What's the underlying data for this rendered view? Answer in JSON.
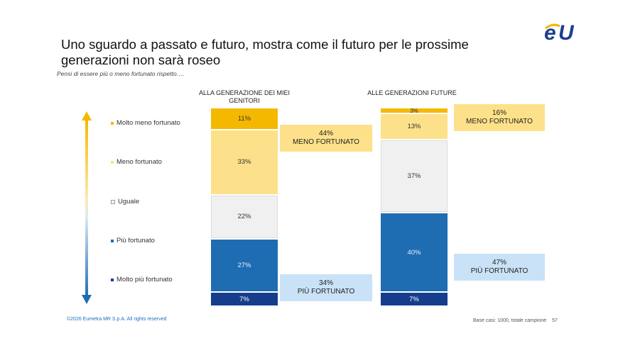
{
  "title": "Uno sguardo a passato e futuro, mostra come il futuro per le prossime generazioni non sarà roseo",
  "subtitle": "Pensi di essere più o meno fortunato rispetto….",
  "logo_text": "eU",
  "legend": [
    {
      "label": "Molto meno fortunato",
      "color": "#f5b800"
    },
    {
      "label": "Meno fortunato",
      "color": "#fde18a"
    },
    {
      "label": "Uguale",
      "color": "#f0f0f0"
    },
    {
      "label": "Più fortunato",
      "color": "#1e6db3"
    },
    {
      "label": "Molto più fortunato",
      "color": "#163d8c"
    }
  ],
  "chart_data": {
    "type": "bar",
    "stacked": true,
    "categories": [
      "ALLA GENERAZIONE DEI MIEI GENITORI",
      "ALLE GENERAZIONI FUTURE"
    ],
    "series": [
      {
        "name": "Molto meno fortunato",
        "values": [
          11,
          3
        ],
        "labels": [
          "11%",
          "3%"
        ]
      },
      {
        "name": "Meno fortunato",
        "values": [
          33,
          13
        ],
        "labels": [
          "33%",
          "13%"
        ]
      },
      {
        "name": "Uguale",
        "values": [
          22,
          37
        ],
        "labels": [
          "22%",
          "37%"
        ]
      },
      {
        "name": "Più fortunato",
        "values": [
          27,
          40
        ],
        "labels": [
          "27%",
          "40%"
        ]
      },
      {
        "name": "Molto più fortunato",
        "values": [
          7,
          7
        ],
        "labels": [
          "7%",
          "7%"
        ]
      }
    ],
    "callouts": [
      {
        "bar": 0,
        "group": "meno",
        "pct": "44%",
        "text": "MENO FORTUNATO"
      },
      {
        "bar": 0,
        "group": "piu",
        "pct": "34%",
        "text": "PIÙ FORTUNATO"
      },
      {
        "bar": 1,
        "group": "meno",
        "pct": "16%",
        "text": "MENO FORTUNATO"
      },
      {
        "bar": 1,
        "group": "piu",
        "pct": "47%",
        "text": "PIÙ FORTUNATO"
      }
    ]
  },
  "footer": {
    "copyright": "©2026 Eumetra MR S.p.A. All rights reserved",
    "base": "Base casi: 1000, totale campione",
    "page": "57"
  }
}
